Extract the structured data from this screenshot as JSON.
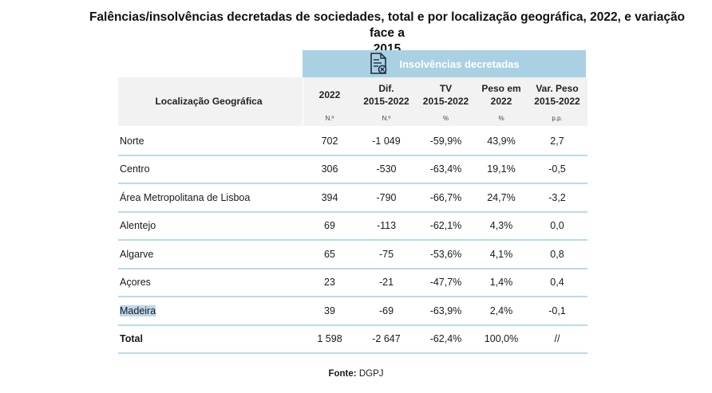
{
  "title": {
    "line1": "Falências/insolvências decretadas de sociedades, total e por localização geográfica, 2022, e variação face a",
    "line2": "2015"
  },
  "band_label": "Insolvências decretadas",
  "header": {
    "region": "Localização Geográfica",
    "c1": "2022",
    "c2a": "Dif.",
    "c2b": "2015-2022",
    "c3a": "TV",
    "c3b": "2015-2022",
    "c4a": "Peso em",
    "c4b": "2022",
    "c5a": "Var. Peso",
    "c5b": "2015-2022",
    "u1": "N.º",
    "u2": "N.º",
    "u3": "%",
    "u4": "%",
    "u5": "p.p."
  },
  "rows": [
    {
      "region": "Norte",
      "v2022": "702",
      "dif": "-1 049",
      "tv": "-59,9%",
      "peso": "43,9%",
      "var": "2,7"
    },
    {
      "region": "Centro",
      "v2022": "306",
      "dif": "-530",
      "tv": "-63,4%",
      "peso": "19,1%",
      "var": "-0,5"
    },
    {
      "region": "Área Metropolitana de Lisboa",
      "v2022": "394",
      "dif": "-790",
      "tv": "-66,7%",
      "peso": "24,7%",
      "var": "-3,2"
    },
    {
      "region": "Alentejo",
      "v2022": "69",
      "dif": "-113",
      "tv": "-62,1%",
      "peso": "4,3%",
      "var": "0,0"
    },
    {
      "region": "Algarve",
      "v2022": "65",
      "dif": "-75",
      "tv": "-53,6%",
      "peso": "4,1%",
      "var": "0,8"
    },
    {
      "region": "Açores",
      "v2022": "23",
      "dif": "-21",
      "tv": "-47,7%",
      "peso": "1,4%",
      "var": "0,4"
    },
    {
      "region": "Madeira",
      "v2022": "39",
      "dif": "-69",
      "tv": "-63,9%",
      "peso": "2,4%",
      "var": "-0,1"
    }
  ],
  "total": {
    "region": "Total",
    "v2022": "1 598",
    "dif": "-2 647",
    "tv": "-62,4%",
    "peso": "100,0%",
    "var": "//"
  },
  "source": {
    "label": "Fonte:",
    "value": "DGPJ"
  },
  "colors": {
    "band": "#a9d1e3",
    "rule": "#b8dce9",
    "header_bg": "#f2f2f2",
    "highlight": "#bcd7ec"
  }
}
